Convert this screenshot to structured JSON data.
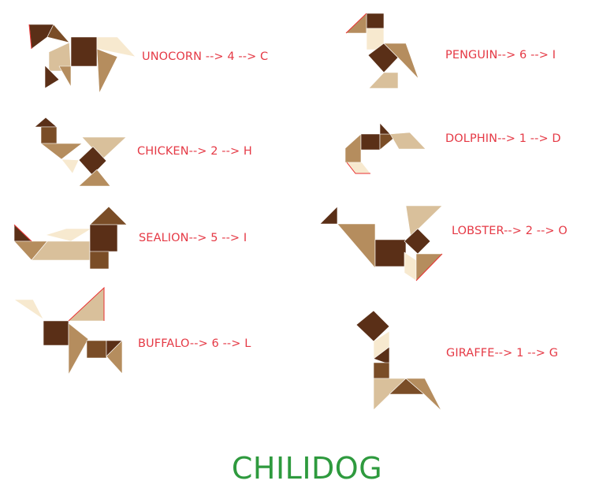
{
  "colors": {
    "clue_text": "#e53945",
    "answer_text": "#2e9a3e",
    "tan_dark": "#5a2f17",
    "tan_medium": "#7a4d27",
    "tan_tan": "#b58d5e",
    "tan_light": "#d9c09b",
    "tan_pale": "#f7e9cf",
    "tan_highlight_edge": "#e83030"
  },
  "puzzle": {
    "clues": [
      {
        "animal": "unocorn",
        "text": "UNOCORN --> 4 --> C"
      },
      {
        "animal": "penguin",
        "text": "PENGUIN--> 6 --> I"
      },
      {
        "animal": "chicken",
        "text": "CHICKEN--> 2 --> H"
      },
      {
        "animal": "dolphin",
        "text": "DOLPHIN--> 1 --> D"
      },
      {
        "animal": "sealion",
        "text": "SEALION--> 5 --> I"
      },
      {
        "animal": "lobster",
        "text": "LOBSTER--> 2 --> O"
      },
      {
        "animal": "buffalo",
        "text": "BUFFALO--> 6 --> L"
      },
      {
        "animal": "giraffe",
        "text": "GIRAFFE--> 1 --> G"
      }
    ],
    "answer": "CHILIDOG"
  }
}
